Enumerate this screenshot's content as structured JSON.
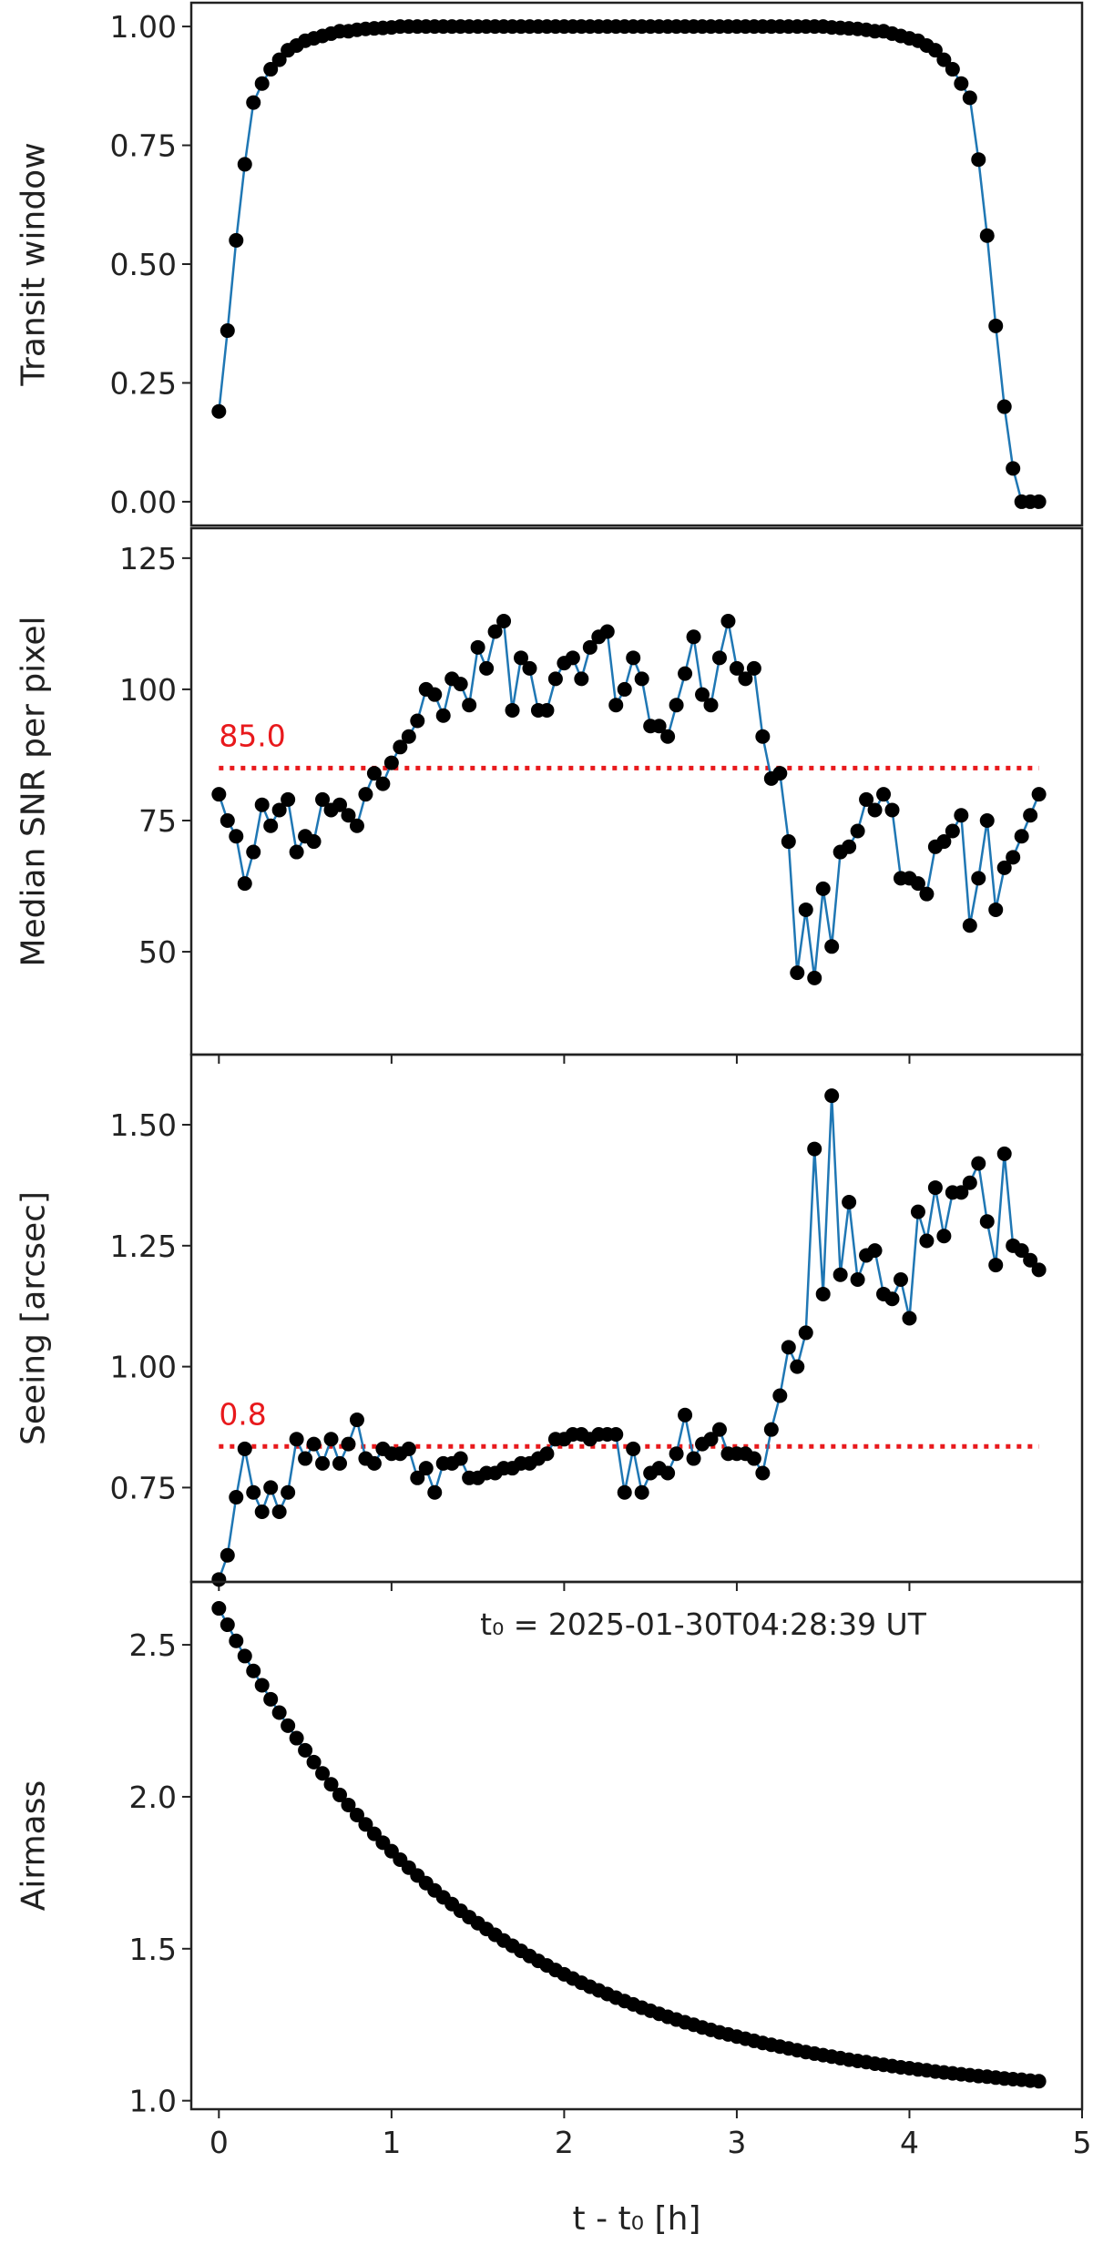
{
  "chart_data": [
    {
      "type": "line",
      "ylabel": "Transit window",
      "color": "#1f77b4",
      "marker_color": "#000000",
      "x": [
        0,
        0.05,
        0.1,
        0.15,
        0.2,
        0.25,
        0.3,
        0.35,
        0.4,
        0.45,
        0.5,
        0.55,
        0.6,
        0.65,
        0.7,
        0.75,
        0.8,
        0.85,
        0.9,
        0.95,
        1,
        1.05,
        1.1,
        1.15,
        1.2,
        1.25,
        1.3,
        1.35,
        1.4,
        1.45,
        1.5,
        1.55,
        1.6,
        1.65,
        1.7,
        1.75,
        1.8,
        1.85,
        1.9,
        1.95,
        2,
        2.05,
        2.1,
        2.15,
        2.2,
        2.25,
        2.3,
        2.35,
        2.4,
        2.45,
        2.5,
        2.55,
        2.6,
        2.65,
        2.7,
        2.75,
        2.8,
        2.85,
        2.9,
        2.95,
        3,
        3.05,
        3.1,
        3.15,
        3.2,
        3.25,
        3.3,
        3.35,
        3.4,
        3.45,
        3.5,
        3.55,
        3.6,
        3.65,
        3.7,
        3.75,
        3.8,
        3.85,
        3.9,
        3.95,
        4,
        4.05,
        4.1,
        4.15,
        4.2,
        4.25,
        4.3,
        4.35,
        4.4,
        4.45,
        4.5,
        4.55,
        4.6,
        4.65,
        4.7,
        4.75
      ],
      "values": [
        0.19,
        0.36,
        0.55,
        0.71,
        0.84,
        0.88,
        0.91,
        0.93,
        0.95,
        0.96,
        0.97,
        0.975,
        0.98,
        0.985,
        0.99,
        0.99,
        0.993,
        0.995,
        0.996,
        0.997,
        0.998,
        1,
        1,
        1,
        1,
        1,
        1,
        1,
        1,
        1,
        1,
        1,
        1,
        1,
        1,
        1,
        1,
        1,
        1,
        1,
        1,
        1,
        1,
        1,
        1,
        1,
        1,
        1,
        1,
        1,
        1,
        1,
        1,
        1,
        1,
        1,
        1,
        1,
        1,
        1,
        1,
        1,
        1,
        1,
        1,
        1,
        1,
        1,
        1,
        1,
        1,
        0.998,
        0.997,
        0.996,
        0.995,
        0.993,
        0.99,
        0.99,
        0.985,
        0.98,
        0.975,
        0.97,
        0.96,
        0.95,
        0.93,
        0.91,
        0.88,
        0.85,
        0.72,
        0.56,
        0.37,
        0.2,
        0.07,
        0,
        0,
        0
      ],
      "xlim": [
        -0.16,
        5.0
      ],
      "ylim": [
        -0.05,
        1.05
      ],
      "yticks": [
        {
          "value": 0,
          "label": "0.00"
        },
        {
          "value": 0.25,
          "label": "0.25"
        },
        {
          "value": 0.5,
          "label": "0.50"
        },
        {
          "value": 0.75,
          "label": "0.75"
        },
        {
          "value": 1,
          "label": "1.00"
        }
      ]
    },
    {
      "type": "line",
      "ylabel": "Median SNR per pixel",
      "color": "#1f77b4",
      "marker_color": "#000000",
      "x": [
        0,
        0.05,
        0.1,
        0.15,
        0.2,
        0.25,
        0.3,
        0.35,
        0.4,
        0.45,
        0.5,
        0.55,
        0.6,
        0.65,
        0.7,
        0.75,
        0.8,
        0.85,
        0.9,
        0.95,
        1,
        1.05,
        1.1,
        1.15,
        1.2,
        1.25,
        1.3,
        1.35,
        1.4,
        1.45,
        1.5,
        1.55,
        1.6,
        1.65,
        1.7,
        1.75,
        1.8,
        1.85,
        1.9,
        1.95,
        2,
        2.05,
        2.1,
        2.15,
        2.2,
        2.25,
        2.3,
        2.35,
        2.4,
        2.45,
        2.5,
        2.55,
        2.6,
        2.65,
        2.7,
        2.75,
        2.8,
        2.85,
        2.9,
        2.95,
        3,
        3.05,
        3.1,
        3.15,
        3.2,
        3.25,
        3.3,
        3.35,
        3.4,
        3.45,
        3.5,
        3.55,
        3.6,
        3.65,
        3.7,
        3.75,
        3.8,
        3.85,
        3.9,
        3.95,
        4,
        4.05,
        4.1,
        4.15,
        4.2,
        4.25,
        4.3,
        4.35,
        4.4,
        4.45,
        4.5,
        4.55,
        4.6,
        4.65,
        4.7,
        4.75
      ],
      "values": [
        80,
        75,
        72,
        63,
        69,
        78,
        74,
        77,
        79,
        69,
        72,
        71,
        79,
        77,
        78,
        76,
        74,
        80,
        84,
        82,
        86,
        89,
        91,
        94,
        100,
        99,
        95,
        102,
        101,
        97,
        108,
        104,
        111,
        113,
        96,
        106,
        104,
        96,
        96,
        102,
        105,
        106,
        102,
        108,
        110,
        111,
        97,
        100,
        106,
        102,
        93,
        93,
        91,
        97,
        103,
        110,
        99,
        97,
        106,
        113,
        104,
        102,
        104,
        91,
        83,
        84,
        71,
        46,
        58,
        45,
        62,
        51,
        69,
        70,
        73,
        79,
        77,
        80,
        77,
        64,
        64,
        63,
        61,
        70,
        71,
        73,
        76,
        55,
        64,
        75,
        58,
        66,
        68,
        72,
        76,
        80
      ],
      "threshold": {
        "value": 85,
        "label": "85.0",
        "color": "#e8191c"
      },
      "xlim": [
        -0.16,
        5.0
      ],
      "ylim": [
        30.4,
        130.7
      ],
      "xticks": [
        0,
        1,
        2,
        3,
        4,
        5
      ],
      "show_xtick_labels": false,
      "yticks": [
        50,
        75,
        100,
        125
      ]
    },
    {
      "type": "line",
      "ylabel": "Seeing [arcsec]",
      "color": "#1f77b4",
      "marker_color": "#000000",
      "x": [
        0,
        0.05,
        0.1,
        0.15,
        0.2,
        0.25,
        0.3,
        0.35,
        0.4,
        0.45,
        0.5,
        0.55,
        0.6,
        0.65,
        0.7,
        0.75,
        0.8,
        0.85,
        0.9,
        0.95,
        1,
        1.05,
        1.1,
        1.15,
        1.2,
        1.25,
        1.3,
        1.35,
        1.4,
        1.45,
        1.5,
        1.55,
        1.6,
        1.65,
        1.7,
        1.75,
        1.8,
        1.85,
        1.9,
        1.95,
        2,
        2.05,
        2.1,
        2.15,
        2.2,
        2.25,
        2.3,
        2.35,
        2.4,
        2.45,
        2.5,
        2.55,
        2.6,
        2.65,
        2.7,
        2.75,
        2.8,
        2.85,
        2.9,
        2.95,
        3,
        3.05,
        3.1,
        3.15,
        3.2,
        3.25,
        3.3,
        3.35,
        3.4,
        3.45,
        3.5,
        3.55,
        3.6,
        3.65,
        3.7,
        3.75,
        3.8,
        3.85,
        3.9,
        3.95,
        4,
        4.05,
        4.1,
        4.15,
        4.2,
        4.25,
        4.3,
        4.35,
        4.4,
        4.45,
        4.5,
        4.55,
        4.6,
        4.65,
        4.7,
        4.75
      ],
      "values": [
        0.56,
        0.61,
        0.73,
        0.83,
        0.74,
        0.7,
        0.75,
        0.7,
        0.74,
        0.85,
        0.81,
        0.84,
        0.8,
        0.85,
        0.8,
        0.84,
        0.89,
        0.81,
        0.8,
        0.83,
        0.82,
        0.82,
        0.83,
        0.77,
        0.79,
        0.74,
        0.8,
        0.8,
        0.81,
        0.77,
        0.77,
        0.78,
        0.78,
        0.79,
        0.79,
        0.8,
        0.8,
        0.81,
        0.82,
        0.85,
        0.85,
        0.86,
        0.86,
        0.85,
        0.86,
        0.86,
        0.86,
        0.74,
        0.83,
        0.74,
        0.78,
        0.79,
        0.78,
        0.82,
        0.9,
        0.81,
        0.84,
        0.85,
        0.87,
        0.82,
        0.82,
        0.82,
        0.81,
        0.78,
        0.87,
        0.94,
        1.04,
        1.0,
        1.07,
        1.45,
        1.15,
        1.56,
        1.19,
        1.34,
        1.18,
        1.23,
        1.24,
        1.15,
        1.14,
        1.18,
        1.1,
        1.32,
        1.26,
        1.37,
        1.27,
        1.36,
        1.36,
        1.38,
        1.42,
        1.3,
        1.21,
        1.44,
        1.25,
        1.24,
        1.22,
        1.2
      ],
      "threshold": {
        "value": 0.835,
        "label": "0.8",
        "color": "#e8191c"
      },
      "xlim": [
        -0.16,
        5.0
      ],
      "ylim": [
        0.555,
        1.645
      ],
      "xticks": [
        0,
        1,
        2,
        3,
        4,
        5
      ],
      "show_xtick_labels": false,
      "yticks": [
        {
          "value": 0.75,
          "label": "0.75"
        },
        {
          "value": 1,
          "label": "1.00"
        },
        {
          "value": 1.25,
          "label": "1.25"
        },
        {
          "value": 1.5,
          "label": "1.50"
        }
      ]
    },
    {
      "type": "line",
      "ylabel": "Airmass",
      "xlabel": "t - t₀ [h]",
      "annotation": "t₀ = 2025-01-30T04:28:39 UT",
      "color": "#1f77b4",
      "marker_color": "#000000",
      "x": [
        0,
        0.05,
        0.1,
        0.15,
        0.2,
        0.25,
        0.3,
        0.35,
        0.4,
        0.45,
        0.5,
        0.55,
        0.6,
        0.65,
        0.7,
        0.75,
        0.8,
        0.85,
        0.9,
        0.95,
        1,
        1.05,
        1.1,
        1.15,
        1.2,
        1.25,
        1.3,
        1.35,
        1.4,
        1.45,
        1.5,
        1.55,
        1.6,
        1.65,
        1.7,
        1.75,
        1.8,
        1.85,
        1.9,
        1.95,
        2,
        2.05,
        2.1,
        2.15,
        2.2,
        2.25,
        2.3,
        2.35,
        2.4,
        2.45,
        2.5,
        2.55,
        2.6,
        2.65,
        2.7,
        2.75,
        2.8,
        2.85,
        2.9,
        2.95,
        3,
        3.05,
        3.1,
        3.15,
        3.2,
        3.25,
        3.3,
        3.35,
        3.4,
        3.45,
        3.5,
        3.55,
        3.6,
        3.65,
        3.7,
        3.75,
        3.8,
        3.85,
        3.9,
        3.95,
        4,
        4.05,
        4.1,
        4.15,
        4.2,
        4.25,
        4.3,
        4.35,
        4.4,
        4.45,
        4.5,
        4.55,
        4.6,
        4.65,
        4.7,
        4.75
      ],
      "values": [
        2.62,
        2.566,
        2.513,
        2.463,
        2.414,
        2.367,
        2.321,
        2.277,
        2.234,
        2.193,
        2.153,
        2.114,
        2.077,
        2.041,
        2.006,
        1.973,
        1.94,
        1.909,
        1.878,
        1.849,
        1.821,
        1.793,
        1.767,
        1.741,
        1.716,
        1.692,
        1.669,
        1.647,
        1.625,
        1.604,
        1.584,
        1.565,
        1.546,
        1.527,
        1.51,
        1.493,
        1.476,
        1.46,
        1.445,
        1.43,
        1.416,
        1.402,
        1.388,
        1.375,
        1.363,
        1.351,
        1.339,
        1.328,
        1.317,
        1.306,
        1.296,
        1.286,
        1.276,
        1.267,
        1.258,
        1.25,
        1.241,
        1.233,
        1.225,
        1.218,
        1.211,
        1.204,
        1.197,
        1.19,
        1.184,
        1.178,
        1.172,
        1.166,
        1.16,
        1.155,
        1.15,
        1.145,
        1.14,
        1.135,
        1.131,
        1.127,
        1.122,
        1.118,
        1.114,
        1.11,
        1.107,
        1.103,
        1.1,
        1.096,
        1.093,
        1.09,
        1.087,
        1.084,
        1.081,
        1.079,
        1.076,
        1.073,
        1.071,
        1.069,
        1.066,
        1.064
      ],
      "xlim": [
        -0.16,
        5.0
      ],
      "ylim": [
        0.972,
        2.707
      ],
      "xticks": [
        0,
        1,
        2,
        3,
        4,
        5
      ],
      "show_xtick_labels": true,
      "yticks": [
        {
          "value": 1,
          "label": "1.0"
        },
        {
          "value": 1.5,
          "label": "1.5"
        },
        {
          "value": 2,
          "label": "2.0"
        },
        {
          "value": 2.5,
          "label": "2.5"
        }
      ]
    }
  ]
}
